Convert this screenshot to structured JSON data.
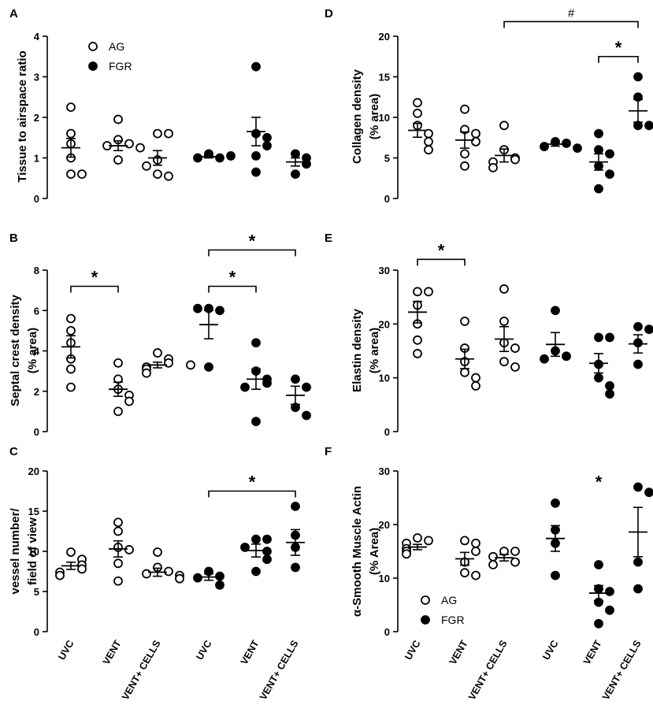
{
  "groups": [
    {
      "name": "AG",
      "fill": "#ffffff"
    },
    {
      "name": "FGR",
      "fill": "#000000"
    }
  ],
  "x_categories": [
    "UVC",
    "VENT",
    "VENT+ CELLS",
    "UVC",
    "VENT",
    "VENT+ CELLS"
  ],
  "colors": {
    "marker_edge": "#000000",
    "axis": "#000000"
  },
  "chart_data": [
    {
      "type": "scatter",
      "panel": "A",
      "ylabel_lines": [
        "Tissue to airspace ratio"
      ],
      "ylim": [
        0,
        4
      ],
      "yticks": [
        0,
        1,
        2,
        3,
        4
      ],
      "legend": [
        "AG",
        "FGR"
      ],
      "series": [
        {
          "name": "AG UVC",
          "fill": "#ffffff",
          "points": [
            2.25,
            1.6,
            1.35,
            1.0,
            0.6,
            0.6
          ],
          "mean": 1.25,
          "sem": 0.23
        },
        {
          "name": "AG VENT",
          "fill": "#ffffff",
          "points": [
            1.95,
            1.45,
            1.35,
            1.3,
            1.25,
            0.95
          ],
          "mean": 1.3,
          "sem": 0.12
        },
        {
          "name": "AG VENT+ CELLS",
          "fill": "#ffffff",
          "points": [
            1.6,
            1.6,
            0.95,
            0.6,
            0.55,
            0.8
          ],
          "mean": 1.0,
          "sem": 0.18
        },
        {
          "name": "FGR UVC",
          "fill": "#000000",
          "points": [
            1.1,
            1.0,
            1.0,
            1.05
          ],
          "mean": 1.03,
          "sem": 0.03
        },
        {
          "name": "FGR VENT",
          "fill": "#000000",
          "points": [
            3.25,
            1.6,
            1.5,
            1.3,
            1.05,
            0.65
          ],
          "mean": 1.65,
          "sem": 0.35
        },
        {
          "name": "FGR VENT+ CELLS",
          "fill": "#000000",
          "points": [
            1.1,
            1.0,
            0.85,
            0.6
          ],
          "mean": 0.9,
          "sem": 0.1
        }
      ],
      "annotations": []
    },
    {
      "type": "scatter",
      "panel": "B",
      "ylabel_lines": [
        "Septal crest density",
        "(% area)"
      ],
      "ylim": [
        0,
        8
      ],
      "yticks": [
        0,
        2,
        4,
        6,
        8
      ],
      "series": [
        {
          "name": "AG UVC",
          "fill": "#ffffff",
          "points": [
            5.6,
            5.0,
            4.4,
            3.6,
            3.1,
            2.2
          ],
          "mean": 4.2,
          "sem": 0.55
        },
        {
          "name": "AG VENT",
          "fill": "#ffffff",
          "points": [
            3.4,
            2.6,
            2.1,
            1.8,
            1.5,
            1.0
          ],
          "mean": 2.1,
          "sem": 0.35
        },
        {
          "name": "AG VENT+ CELLS",
          "fill": "#ffffff",
          "points": [
            3.9,
            3.6,
            3.4,
            3.2,
            3.1,
            2.9,
            3.3
          ],
          "mean": 3.3,
          "sem": 0.14
        },
        {
          "name": "FGR UVC",
          "fill": "#000000",
          "points": [
            6.1,
            6.0,
            6.1,
            3.2
          ],
          "mean": 5.3,
          "sem": 0.7
        },
        {
          "name": "FGR VENT",
          "fill": "#000000",
          "points": [
            4.4,
            3.0,
            2.6,
            2.4,
            2.2,
            0.5
          ],
          "mean": 2.6,
          "sem": 0.5
        },
        {
          "name": "FGR VENT+ CELLS",
          "fill": "#000000",
          "points": [
            2.6,
            2.2,
            1.2,
            0.8
          ],
          "mean": 1.8,
          "sem": 0.45
        }
      ],
      "annotations": [
        {
          "type": "bracket",
          "from": 0,
          "to": 1,
          "y": 7.2,
          "label": "*"
        },
        {
          "type": "bracket",
          "from": 3,
          "to": 4,
          "y": 7.2,
          "label": "*"
        },
        {
          "type": "bracket",
          "from": 3,
          "to": 5,
          "y": 9.0,
          "label": "*"
        }
      ]
    },
    {
      "type": "scatter",
      "panel": "C",
      "ylabel_lines": [
        "vessel number/",
        "field of view"
      ],
      "ylim": [
        0,
        20
      ],
      "yticks": [
        0,
        5,
        10,
        15,
        20
      ],
      "series": [
        {
          "name": "AG UVC",
          "fill": "#ffffff",
          "points": [
            9.9,
            9.0,
            8.3,
            7.8,
            7.4,
            7.0
          ],
          "mean": 8.2,
          "sem": 0.45
        },
        {
          "name": "AG VENT",
          "fill": "#ffffff",
          "points": [
            13.6,
            12.5,
            10.5,
            10.2,
            8.5,
            6.3
          ],
          "mean": 10.3,
          "sem": 1.0
        },
        {
          "name": "AG VENT+ CELLS",
          "fill": "#ffffff",
          "points": [
            9.9,
            8.0,
            7.5,
            7.2,
            7.0,
            6.6
          ],
          "mean": 7.4,
          "sem": 0.5
        },
        {
          "name": "FGR UVC",
          "fill": "#000000",
          "points": [
            7.5,
            6.9,
            6.7,
            5.8
          ],
          "mean": 6.8,
          "sem": 0.4
        },
        {
          "name": "FGR VENT",
          "fill": "#000000",
          "points": [
            11.5,
            11.5,
            10.5,
            10.0,
            9.0,
            7.5
          ],
          "mean": 10.1,
          "sem": 0.8
        },
        {
          "name": "FGR VENT+ CELLS",
          "fill": "#000000",
          "points": [
            15.6,
            12.0,
            10.5,
            8.0
          ],
          "mean": 11.1,
          "sem": 1.6
        }
      ],
      "annotations": [
        {
          "type": "bracket",
          "from": 3,
          "to": 5,
          "y": 17.5,
          "label": "*"
        }
      ]
    },
    {
      "type": "scatter",
      "panel": "D",
      "ylabel_lines": [
        "Collagen density",
        "(% area)"
      ],
      "ylim": [
        0,
        20
      ],
      "yticks": [
        0,
        5,
        10,
        15,
        20
      ],
      "series": [
        {
          "name": "AG UVC",
          "fill": "#ffffff",
          "points": [
            11.8,
            10.5,
            9.0,
            8.0,
            7.0,
            6.0
          ],
          "mean": 8.4,
          "sem": 0.85
        },
        {
          "name": "AG VENT",
          "fill": "#ffffff",
          "points": [
            11.0,
            8.5,
            8.0,
            7.0,
            5.5,
            4.0
          ],
          "mean": 7.2,
          "sem": 1.0
        },
        {
          "name": "AG VENT+ CELLS",
          "fill": "#ffffff",
          "points": [
            9.0,
            6.0,
            5.0,
            4.8,
            4.5,
            3.8
          ],
          "mean": 5.3,
          "sem": 0.8
        },
        {
          "name": "FGR UVC",
          "fill": "#000000",
          "points": [
            7.0,
            6.8,
            6.4,
            6.2
          ],
          "mean": 6.7,
          "sem": 0.25
        },
        {
          "name": "FGR VENT",
          "fill": "#000000",
          "points": [
            8.0,
            6.0,
            5.5,
            4.0,
            3.0,
            1.2
          ],
          "mean": 4.5,
          "sem": 1.0
        },
        {
          "name": "FGR VENT+ CELLS",
          "fill": "#000000",
          "points": [
            15.0,
            12.5,
            9.0,
            9.0
          ],
          "mean": 10.8,
          "sem": 1.4
        }
      ],
      "annotations": [
        {
          "type": "bracket",
          "from": 2,
          "to": 5,
          "y": 21.8,
          "label": "#"
        },
        {
          "type": "bracket",
          "from": 4,
          "to": 5,
          "y": 17.5,
          "label": "*"
        }
      ]
    },
    {
      "type": "scatter",
      "panel": "E",
      "ylabel_lines": [
        "Elastin density",
        "(% area)"
      ],
      "ylim": [
        0,
        30
      ],
      "yticks": [
        0,
        10,
        20,
        30
      ],
      "series": [
        {
          "name": "AG UVC",
          "fill": "#ffffff",
          "points": [
            26.0,
            26.0,
            23.5,
            20.0,
            17.0,
            14.5
          ],
          "mean": 22.2,
          "sem": 2.0
        },
        {
          "name": "AG VENT",
          "fill": "#ffffff",
          "points": [
            20.5,
            15.5,
            13.0,
            11.0,
            10.0,
            8.5
          ],
          "mean": 13.5,
          "sem": 1.8
        },
        {
          "name": "AG VENT+ CELLS",
          "fill": "#ffffff",
          "points": [
            26.5,
            20.5,
            16.5,
            15.5,
            13.0,
            12.0
          ],
          "mean": 17.2,
          "sem": 2.3
        },
        {
          "name": "FGR UVC",
          "fill": "#000000",
          "points": [
            22.5,
            15.0,
            14.0,
            13.5
          ],
          "mean": 16.2,
          "sem": 2.2
        },
        {
          "name": "FGR VENT",
          "fill": "#000000",
          "points": [
            17.5,
            17.5,
            12.5,
            10.0,
            8.5,
            7.0
          ],
          "mean": 12.7,
          "sem": 1.8
        },
        {
          "name": "FGR VENT+ CELLS",
          "fill": "#000000",
          "points": [
            19.5,
            19.0,
            16.5,
            12.5
          ],
          "mean": 16.3,
          "sem": 1.7
        }
      ],
      "annotations": [
        {
          "type": "bracket",
          "from": 0,
          "to": 1,
          "y": 32.0,
          "label": "*"
        }
      ]
    },
    {
      "type": "scatter",
      "panel": "F",
      "ylabel_lines": [
        "α-Smooth Muscle Actin",
        "(% Area)"
      ],
      "ylim": [
        0,
        30
      ],
      "yticks": [
        0,
        10,
        20,
        30
      ],
      "legend": [
        "AG",
        "FGR"
      ],
      "series": [
        {
          "name": "AG UVC",
          "fill": "#ffffff",
          "points": [
            17.5,
            17.0,
            16.5,
            15.5,
            15.0,
            14.5
          ],
          "mean": 15.8,
          "sem": 0.5
        },
        {
          "name": "AG VENT",
          "fill": "#ffffff",
          "points": [
            17.0,
            16.5,
            15.0,
            13.0,
            11.0,
            10.5
          ],
          "mean": 13.6,
          "sem": 1.2
        },
        {
          "name": "AG VENT+ CELLS",
          "fill": "#ffffff",
          "points": [
            15.0,
            15.0,
            14.0,
            13.0,
            12.5
          ],
          "mean": 13.8,
          "sem": 0.6
        },
        {
          "name": "FGR UVC",
          "fill": "#000000",
          "points": [
            24.0,
            19.0,
            16.5,
            10.5
          ],
          "mean": 17.4,
          "sem": 2.4
        },
        {
          "name": "FGR VENT",
          "fill": "#000000",
          "points": [
            12.5,
            8.0,
            7.5,
            5.5,
            4.0,
            1.5
          ],
          "mean": 7.2,
          "sem": 1.4
        },
        {
          "name": "FGR VENT+ CELLS",
          "fill": "#000000",
          "points": [
            27.0,
            26.0,
            13.0,
            8.0
          ],
          "mean": 18.6,
          "sem": 4.6
        }
      ],
      "annotations": [
        {
          "type": "star",
          "at": 4,
          "y": 28.0,
          "label": "*"
        }
      ]
    }
  ]
}
